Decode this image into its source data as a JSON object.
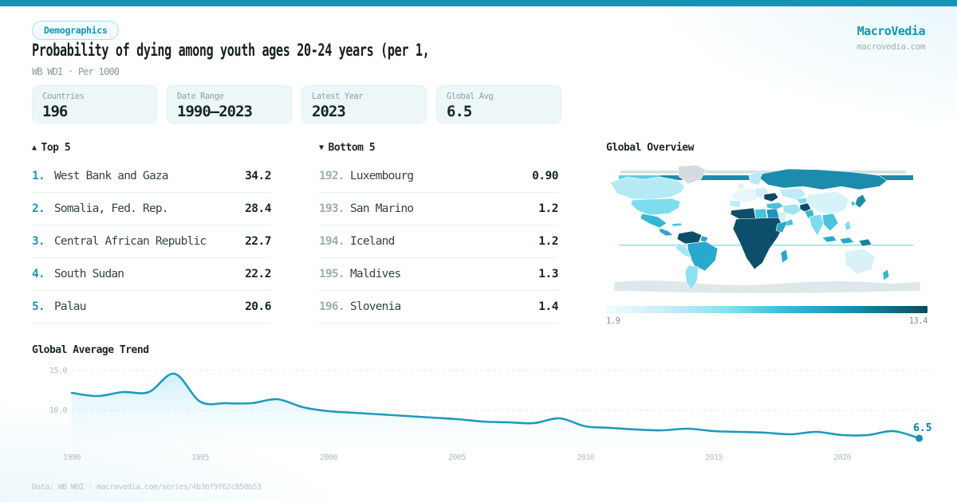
{
  "brand": {
    "name": "MacroVedia",
    "domain": "macrovedia.com"
  },
  "badge": "Demographics",
  "title": "Probability of dying among youth ages 20-24 years (per 1,",
  "subtitle": "WB WDI · Per 1000",
  "stats": [
    {
      "label": "Countries",
      "value": "196"
    },
    {
      "label": "Date Range",
      "value": "1990—2023"
    },
    {
      "label": "Latest Year",
      "value": "2023"
    },
    {
      "label": "Global Avg",
      "value": "6.5"
    }
  ],
  "top5": {
    "icon": "▲",
    "header": "Top 5",
    "rows": [
      {
        "rank": "1.",
        "name": "West Bank and Gaza",
        "value": "34.2"
      },
      {
        "rank": "2.",
        "name": "Somalia, Fed. Rep.",
        "value": "28.4"
      },
      {
        "rank": "3.",
        "name": "Central African Republic",
        "value": "22.7"
      },
      {
        "rank": "4.",
        "name": "South Sudan",
        "value": "22.2"
      },
      {
        "rank": "5.",
        "name": "Palau",
        "value": "20.6"
      }
    ]
  },
  "bottom5": {
    "icon": "▼",
    "header": "Bottom 5",
    "rows": [
      {
        "rank": "192.",
        "name": "Luxembourg",
        "value": "0.90"
      },
      {
        "rank": "193.",
        "name": "San Marino",
        "value": "1.2"
      },
      {
        "rank": "194.",
        "name": "Iceland",
        "value": "1.2"
      },
      {
        "rank": "195.",
        "name": "Maldives",
        "value": "1.3"
      },
      {
        "rank": "196.",
        "name": "Slovenia",
        "value": "1.4"
      }
    ]
  },
  "map": {
    "title": "Global Overview",
    "legend_min": "1.9",
    "legend_max": "13.4"
  },
  "trend": {
    "title": "Global Average Trend"
  },
  "footer": "Data: WB WDI · macrovedia.com/series/4b3bf9f62c850b53",
  "colors": {
    "accent": "#1095b5",
    "brand_text": "#1095b5",
    "line": "#1e9abc",
    "line_dark": "#1591b4",
    "end_label": "#0f7d9e",
    "grid": "#dce8eb",
    "tick": "#aebcc2",
    "area_top": "rgba(168,226,240,0.55)",
    "area_bottom": "rgba(238,250,252,0.05)",
    "map_scale_min": "#f2fbfd",
    "map_scale_max": "#0c4a61"
  },
  "chart_data": [
    {
      "type": "line",
      "title": "Global Average Trend",
      "x": [
        1990,
        1991,
        1992,
        1993,
        1994,
        1995,
        1996,
        1997,
        1998,
        1999,
        2000,
        2001,
        2002,
        2003,
        2004,
        2005,
        2006,
        2007,
        2008,
        2009,
        2010,
        2011,
        2012,
        2013,
        2014,
        2015,
        2016,
        2017,
        2018,
        2019,
        2020,
        2021,
        2022,
        2023
      ],
      "values": [
        12.2,
        11.8,
        12.3,
        12.3,
        14.6,
        11.1,
        10.9,
        10.9,
        11.4,
        10.4,
        9.9,
        9.7,
        9.5,
        9.3,
        9.1,
        8.9,
        8.6,
        8.5,
        8.4,
        9.0,
        8.0,
        7.8,
        7.6,
        7.5,
        7.7,
        7.4,
        7.3,
        7.2,
        7.0,
        7.3,
        6.9,
        6.9,
        7.4,
        6.5
      ],
      "end_label": "6.5",
      "x_ticks": [
        1990,
        1995,
        2000,
        2005,
        2010,
        2015,
        2020
      ],
      "y_ticks": [
        15,
        10
      ],
      "ylim": [
        4.5,
        16.5
      ],
      "xlabel": "",
      "ylabel": "",
      "legend": "none",
      "grid": "dashed-horizontal"
    },
    {
      "type": "choropleth",
      "title": "Global Overview",
      "scale_min": 1.9,
      "scale_max": 13.4,
      "high_regions": [
        "Sub-Saharan Africa",
        "Venezuela/Colombia",
        "Ukraine",
        "Afghanistan",
        "Russia"
      ],
      "low_regions": [
        "Western Europe",
        "China",
        "Australia",
        "Canada",
        "Saudi Arabia"
      ]
    }
  ]
}
